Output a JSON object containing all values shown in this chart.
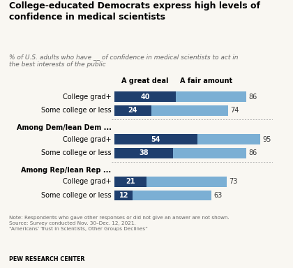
{
  "title": "College-educated Democrats express high levels of\nconfidence in medical scientists",
  "subtitle_parts": [
    {
      "text": "% of U.S. adults who have __ of confidence in ",
      "bold": false,
      "italic": true
    },
    {
      "text": "medical scientists",
      "bold": true,
      "italic": true
    },
    {
      "text": " to act in\nthe best interests of the public",
      "bold": false,
      "italic": true
    }
  ],
  "subtitle_plain": "% of U.S. adults who have __ of confidence in medical scientists to act in\nthe best interests of the public",
  "groups": [
    {
      "label": "",
      "rows": [
        {
          "category": "College grad+",
          "great_deal": 40,
          "fair_amount": 86
        },
        {
          "category": "Some college or less",
          "great_deal": 24,
          "fair_amount": 74
        }
      ]
    },
    {
      "label": "Among Dem/lean Dem ...",
      "rows": [
        {
          "category": "College grad+",
          "great_deal": 54,
          "fair_amount": 95
        },
        {
          "category": "Some college or less",
          "great_deal": 38,
          "fair_amount": 86
        }
      ]
    },
    {
      "label": "Among Rep/lean Rep ...",
      "rows": [
        {
          "category": "College grad+",
          "great_deal": 21,
          "fair_amount": 73
        },
        {
          "category": "Some college or less",
          "great_deal": 12,
          "fair_amount": 63
        }
      ]
    }
  ],
  "color_great_deal": "#1f3f6e",
  "color_fair_amount": "#7bafd4",
  "bar_height": 0.38,
  "note_line1": "Note: Respondents who gave other responses or did not give an answer are not shown.",
  "note_line2": "Source: Survey conducted Nov. 30–Dec. 12, 2021.",
  "note_line3": "“Americans’ Trust in Scientists, Other Groups Declines”",
  "source_bold": "PEW RESEARCH CENTER",
  "legend_great_deal": "A great deal",
  "legend_fair_amount": "A fair amount",
  "background_color": "#f9f7f2",
  "title_color": "#000000",
  "subtitle_color": "#666666",
  "note_color": "#666666"
}
